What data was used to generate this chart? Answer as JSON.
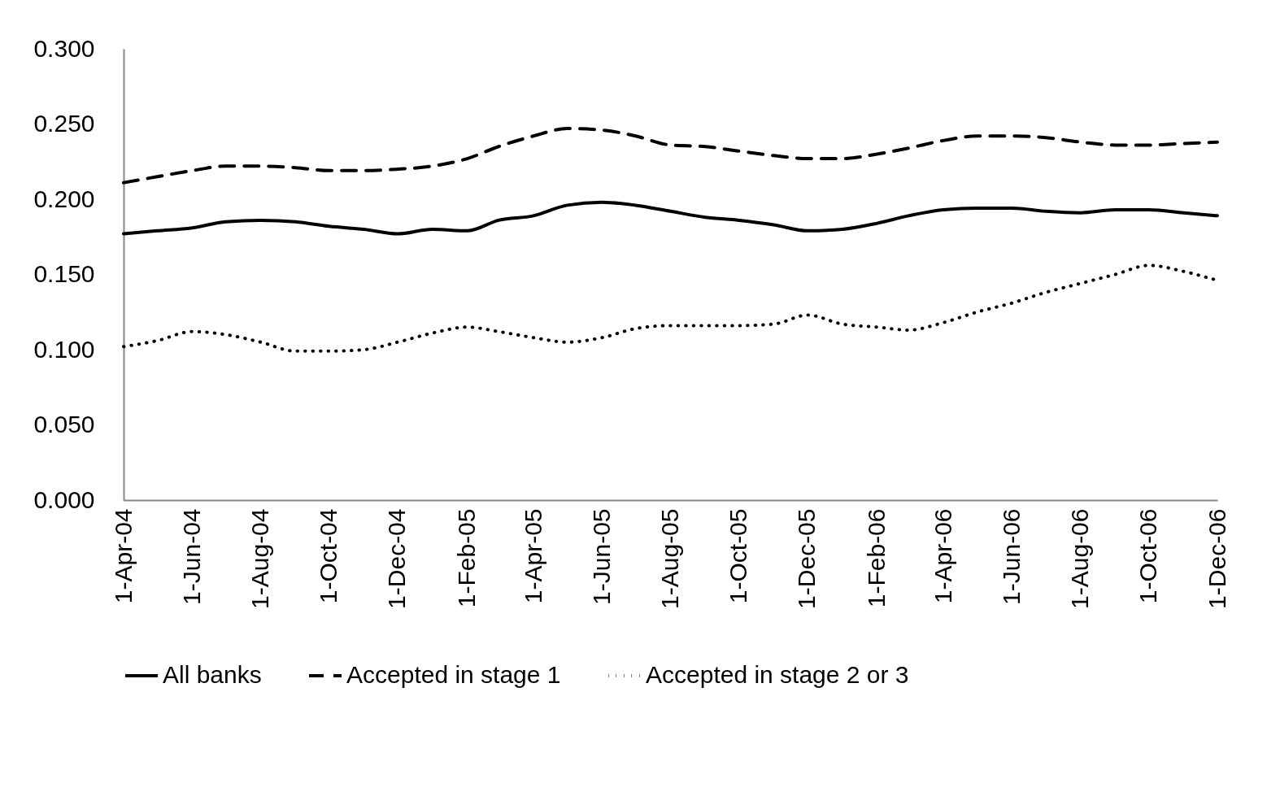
{
  "chart_data": {
    "type": "line",
    "x": [
      "2004-04",
      "2004-05",
      "2004-06",
      "2004-07",
      "2004-08",
      "2004-09",
      "2004-10",
      "2004-11",
      "2004-12",
      "2005-01",
      "2005-02",
      "2005-03",
      "2005-04",
      "2005-05",
      "2005-06",
      "2005-07",
      "2005-08",
      "2005-09",
      "2005-10",
      "2005-11",
      "2005-12",
      "2006-01",
      "2006-02",
      "2006-03",
      "2006-04",
      "2006-05",
      "2006-06",
      "2006-07",
      "2006-08",
      "2006-09",
      "2006-10",
      "2006-11",
      "2006-12"
    ],
    "series": [
      {
        "name": "All banks",
        "color": "#000000",
        "line_style": "solid",
        "values": [
          0.177,
          0.179,
          0.181,
          0.185,
          0.186,
          0.185,
          0.182,
          0.18,
          0.177,
          0.18,
          0.179,
          0.186,
          0.189,
          0.196,
          0.198,
          0.196,
          0.192,
          0.188,
          0.186,
          0.183,
          0.179,
          0.18,
          0.184,
          0.189,
          0.193,
          0.194,
          0.194,
          0.192,
          0.191,
          0.193,
          0.193,
          0.191,
          0.189
        ]
      },
      {
        "name": "Accepted in stage 1",
        "color": "#000000",
        "line_style": "dashed",
        "values": [
          0.211,
          0.215,
          0.219,
          0.222,
          0.222,
          0.221,
          0.219,
          0.219,
          0.22,
          0.222,
          0.227,
          0.235,
          0.242,
          0.247,
          0.246,
          0.242,
          0.236,
          0.235,
          0.232,
          0.229,
          0.227,
          0.227,
          0.23,
          0.234,
          0.239,
          0.242,
          0.242,
          0.241,
          0.238,
          0.236,
          0.236,
          0.237,
          0.238
        ]
      },
      {
        "name": "Accepted in stage 2 or 3",
        "color": "#000000",
        "line_style": "dotted",
        "values": [
          0.102,
          0.106,
          0.112,
          0.11,
          0.105,
          0.099,
          0.099,
          0.1,
          0.105,
          0.111,
          0.115,
          0.112,
          0.108,
          0.105,
          0.108,
          0.114,
          0.116,
          0.116,
          0.116,
          0.117,
          0.123,
          0.117,
          0.115,
          0.113,
          0.118,
          0.125,
          0.131,
          0.138,
          0.144,
          0.15,
          0.156,
          0.152,
          0.146
        ]
      }
    ],
    "xlim": [
      "2004-04",
      "2006-12"
    ],
    "xticks": [
      {
        "value": "2004-04",
        "label": "1-Apr-04"
      },
      {
        "value": "2004-06",
        "label": "1-Jun-04"
      },
      {
        "value": "2004-08",
        "label": "1-Aug-04"
      },
      {
        "value": "2004-10",
        "label": "1-Oct-04"
      },
      {
        "value": "2004-12",
        "label": "1-Dec-04"
      },
      {
        "value": "2005-02",
        "label": "1-Feb-05"
      },
      {
        "value": "2005-04",
        "label": "1-Apr-05"
      },
      {
        "value": "2005-06",
        "label": "1-Jun-05"
      },
      {
        "value": "2005-08",
        "label": "1-Aug-05"
      },
      {
        "value": "2005-10",
        "label": "1-Oct-05"
      },
      {
        "value": "2005-12",
        "label": "1-Dec-05"
      },
      {
        "value": "2006-02",
        "label": "1-Feb-06"
      },
      {
        "value": "2006-04",
        "label": "1-Apr-06"
      },
      {
        "value": "2006-06",
        "label": "1-Jun-06"
      },
      {
        "value": "2006-08",
        "label": "1-Aug-06"
      },
      {
        "value": "2006-10",
        "label": "1-Oct-06"
      },
      {
        "value": "2006-12",
        "label": "1-Dec-06"
      }
    ],
    "ylim": [
      0,
      0.3
    ],
    "yticks": [
      {
        "value": 0,
        "label": "0.000"
      },
      {
        "value": 0.05,
        "label": "0.050"
      },
      {
        "value": 0.1,
        "label": "0.100"
      },
      {
        "value": 0.15,
        "label": "0.150"
      },
      {
        "value": 0.2,
        "label": "0.200"
      },
      {
        "value": 0.25,
        "label": "0.250"
      },
      {
        "value": 0.3,
        "label": "0.300"
      }
    ],
    "grid": false,
    "legend": "bottom",
    "marker": "none"
  }
}
